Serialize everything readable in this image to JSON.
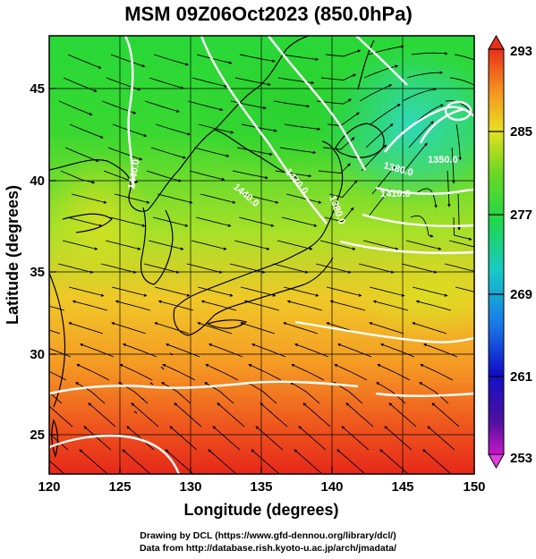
{
  "title": "MSM 09Z06Oct2023 (850.0hPa)",
  "xlabel": "Longitude (degrees)",
  "ylabel": "Latitude  (degrees)",
  "x_ticks": [
    "120",
    "125",
    "130",
    "135",
    "140",
    "145",
    "150"
  ],
  "y_ticks": [
    "25",
    "30",
    "35",
    "40",
    "45"
  ],
  "colorbar": {
    "ticks": [
      "293",
      "285",
      "277",
      "269",
      "261",
      "253"
    ],
    "range": [
      253,
      293
    ]
  },
  "contour_labels": [
    "1440.0",
    "1470.0",
    "1350.0",
    "1380.0",
    "1410.0",
    "1380.0",
    "1440.0"
  ],
  "credits": {
    "line1": "Drawing by DCL (https://www.gfd-dennou.org/library/dcl/)",
    "line2": "Data from http://database.rish.kyoto-u.ac.jp/arch/jmadata/"
  },
  "map": {
    "lon_range": [
      120,
      150
    ],
    "lat_range": [
      23,
      48
    ],
    "colors": {
      "warm": "#e8301c",
      "orange": "#f5a020",
      "yellow": "#c8e020",
      "green": "#30d030",
      "teal": "#38d8b0",
      "coast": "#000000",
      "contour": "#ffffff"
    }
  }
}
